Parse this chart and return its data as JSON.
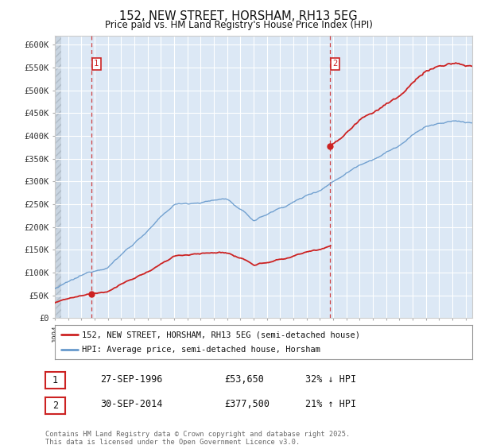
{
  "title": "152, NEW STREET, HORSHAM, RH13 5EG",
  "subtitle": "Price paid vs. HM Land Registry's House Price Index (HPI)",
  "ylim": [
    0,
    620000
  ],
  "yticks": [
    0,
    50000,
    100000,
    150000,
    200000,
    250000,
    300000,
    350000,
    400000,
    450000,
    500000,
    550000,
    600000
  ],
  "ytick_labels": [
    "£0",
    "£50K",
    "£100K",
    "£150K",
    "£200K",
    "£250K",
    "£300K",
    "£350K",
    "£400K",
    "£450K",
    "£500K",
    "£550K",
    "£600K"
  ],
  "hpi_color": "#6699cc",
  "price_color": "#cc2222",
  "marker1_year": 1996.75,
  "marker1_price": 53650,
  "marker2_year": 2014.75,
  "marker2_price": 377500,
  "legend_label1": "152, NEW STREET, HORSHAM, RH13 5EG (semi-detached house)",
  "legend_label2": "HPI: Average price, semi-detached house, Horsham",
  "table_row1": [
    "1",
    "27-SEP-1996",
    "£53,650",
    "32% ↓ HPI"
  ],
  "table_row2": [
    "2",
    "30-SEP-2014",
    "£377,500",
    "21% ↑ HPI"
  ],
  "copyright_text": "Contains HM Land Registry data © Crown copyright and database right 2025.\nThis data is licensed under the Open Government Licence v3.0.",
  "background_plot": "#dce8f5",
  "background_fig": "#ffffff",
  "grid_color": "#ffffff",
  "xstart": 1994,
  "xend": 2025.5
}
